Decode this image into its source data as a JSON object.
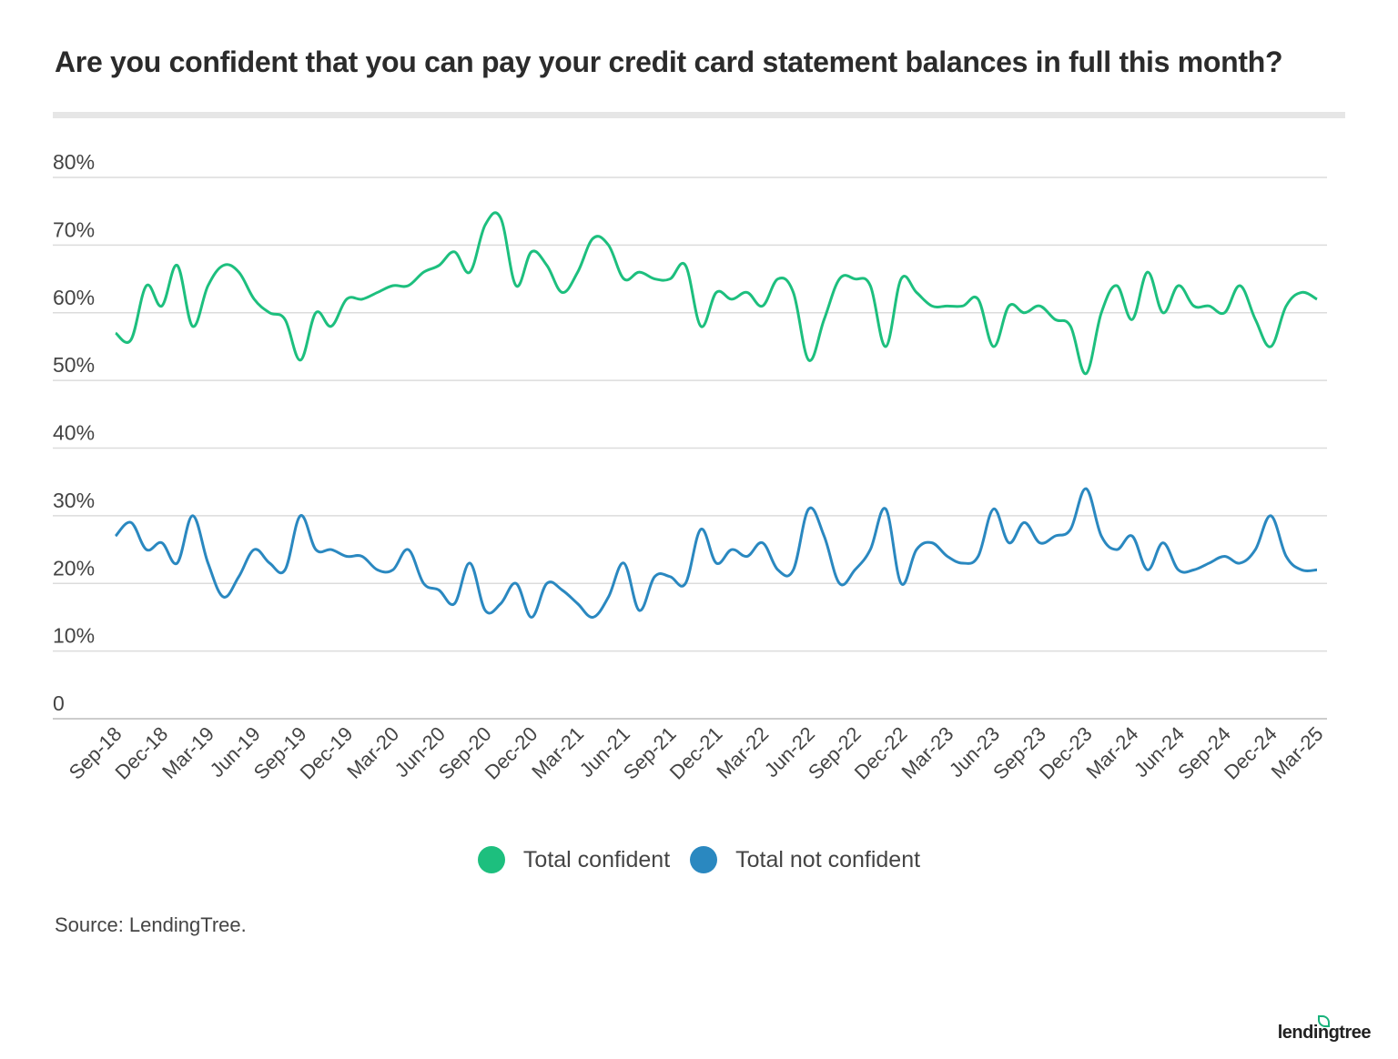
{
  "chart_data": {
    "type": "line",
    "title": "Are you confident that you can pay your credit card statement balances in full this month?",
    "xlabel": "",
    "ylabel": "",
    "ylim": [
      0,
      80
    ],
    "y_ticks": [
      "0",
      "10%",
      "20%",
      "30%",
      "40%",
      "50%",
      "60%",
      "70%",
      "80%"
    ],
    "grid": true,
    "legend_position": "bottom",
    "x_tick_labels": [
      "Sep-18",
      "Dec-18",
      "Mar-19",
      "Jun-19",
      "Sep-19",
      "Dec-19",
      "Mar-20",
      "Jun-20",
      "Sep-20",
      "Dec-20",
      "Mar-21",
      "Jun-21",
      "Sep-21",
      "Dec-21",
      "Mar-22",
      "Jun-22",
      "Sep-22",
      "Dec-22",
      "Mar-23",
      "Jun-23",
      "Sep-23",
      "Dec-23",
      "Mar-24",
      "Jun-24",
      "Sep-24",
      "Dec-24",
      "Mar-25"
    ],
    "categories": [
      "Sep-18",
      "Oct-18",
      "Nov-18",
      "Dec-18",
      "Jan-19",
      "Feb-19",
      "Mar-19",
      "Apr-19",
      "May-19",
      "Jun-19",
      "Jul-19",
      "Aug-19",
      "Sep-19",
      "Oct-19",
      "Nov-19",
      "Dec-19",
      "Jan-20",
      "Feb-20",
      "Mar-20",
      "Apr-20",
      "May-20",
      "Jun-20",
      "Jul-20",
      "Aug-20",
      "Sep-20",
      "Oct-20",
      "Nov-20",
      "Dec-20",
      "Jan-21",
      "Feb-21",
      "Mar-21",
      "Apr-21",
      "May-21",
      "Jun-21",
      "Jul-21",
      "Aug-21",
      "Sep-21",
      "Oct-21",
      "Nov-21",
      "Dec-21",
      "Jan-22",
      "Feb-22",
      "Mar-22",
      "Apr-22",
      "May-22",
      "Jun-22",
      "Jul-22",
      "Aug-22",
      "Sep-22",
      "Oct-22",
      "Nov-22",
      "Dec-22",
      "Jan-23",
      "Feb-23",
      "Mar-23",
      "Apr-23",
      "May-23",
      "Jun-23",
      "Jul-23",
      "Aug-23",
      "Sep-23",
      "Oct-23",
      "Nov-23",
      "Dec-23",
      "Jan-24",
      "Feb-24",
      "Mar-24",
      "Apr-24",
      "May-24",
      "Jun-24",
      "Jul-24",
      "Aug-24",
      "Sep-24",
      "Oct-24",
      "Nov-24",
      "Dec-24",
      "Jan-25",
      "Feb-25",
      "Mar-25"
    ],
    "series": [
      {
        "name": "Total confident",
        "color": "#1dbf7e",
        "values": [
          57,
          56,
          64,
          61,
          67,
          58,
          64,
          67,
          66,
          62,
          60,
          59,
          53,
          60,
          58,
          62,
          62,
          63,
          64,
          64,
          66,
          67,
          69,
          66,
          73,
          74,
          64,
          69,
          67,
          63,
          66,
          71,
          70,
          65,
          66,
          65,
          65,
          67,
          58,
          63,
          62,
          63,
          61,
          65,
          63,
          53,
          59,
          65,
          65,
          64,
          55,
          65,
          63,
          61,
          61,
          61,
          62,
          55,
          61,
          60,
          61,
          59,
          58,
          51,
          60,
          64,
          59,
          66,
          60,
          64,
          61,
          61,
          60,
          64,
          59,
          55,
          61,
          63,
          62
        ]
      },
      {
        "name": "Total not confident",
        "color": "#2a88c0",
        "values": [
          27,
          29,
          25,
          26,
          23,
          30,
          23,
          18,
          21,
          25,
          23,
          22,
          30,
          25,
          25,
          24,
          24,
          22,
          22,
          25,
          20,
          19,
          17,
          23,
          16,
          17,
          20,
          15,
          20,
          19,
          17,
          15,
          18,
          23,
          16,
          21,
          21,
          20,
          28,
          23,
          25,
          24,
          26,
          22,
          22,
          31,
          27,
          20,
          22,
          25,
          31,
          20,
          25,
          26,
          24,
          23,
          24,
          31,
          26,
          29,
          26,
          27,
          28,
          34,
          27,
          25,
          27,
          22,
          26,
          22,
          22,
          23,
          24,
          23,
          25,
          30,
          24,
          22,
          22
        ]
      }
    ]
  },
  "source": "Source: LendingTree.",
  "logo": "lendingtree"
}
